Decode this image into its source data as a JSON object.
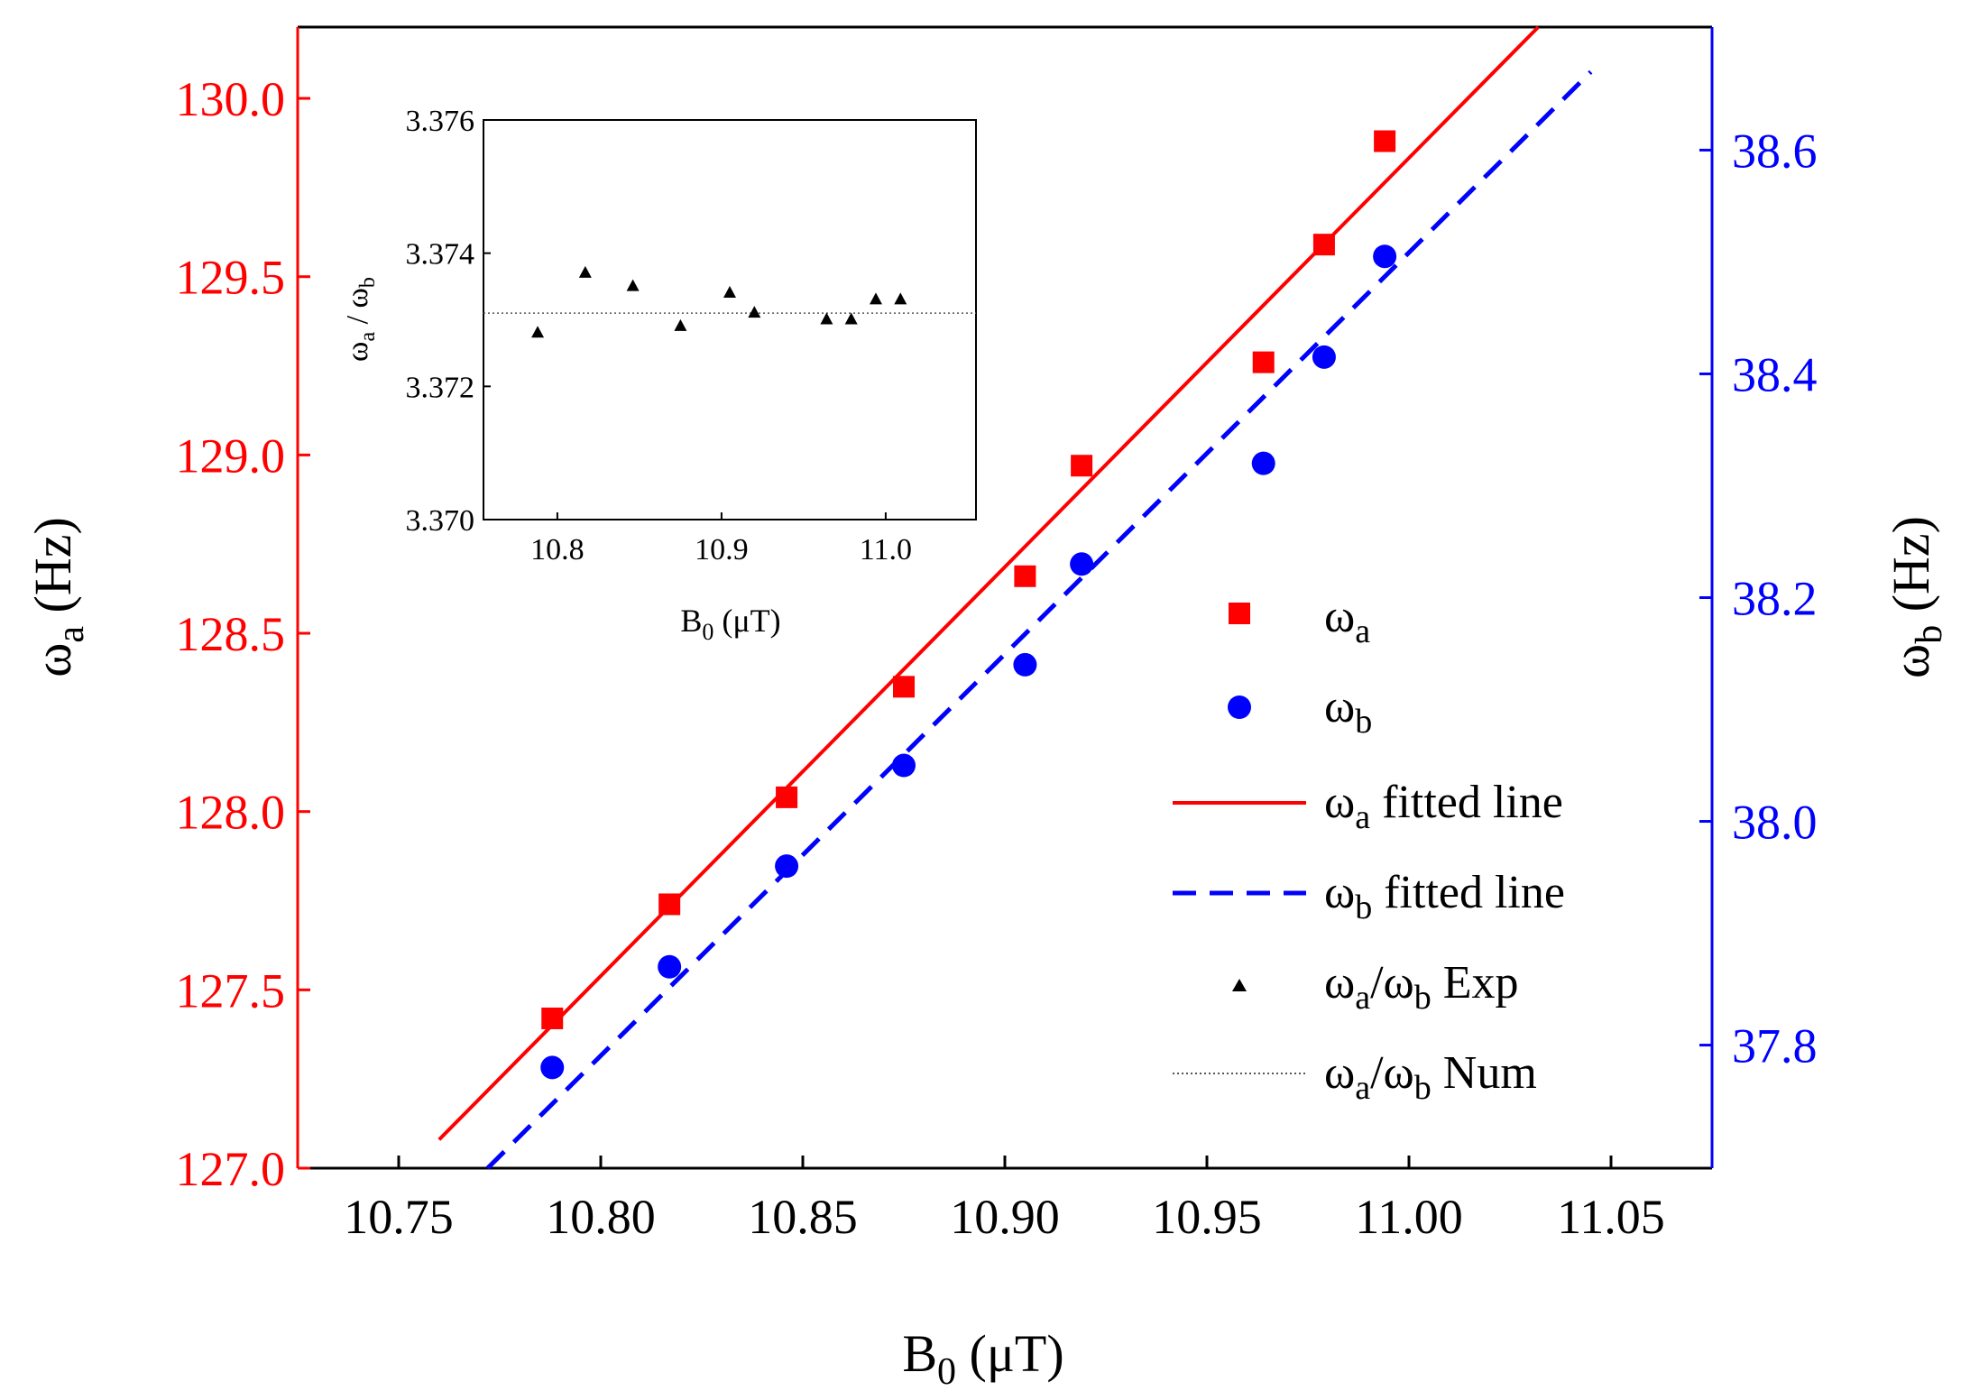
{
  "chart_data": [
    {
      "type": "scatter",
      "role": "main",
      "xlabel": {
        "main": "B",
        "sub": "0",
        "unit": " (μT)"
      },
      "ylabel_left": {
        "main": "ω",
        "sub": "a",
        "unit": " (Hz)"
      },
      "ylabel_right": {
        "main": "ω",
        "sub": "b",
        "unit": " (Hz)"
      },
      "xlim": [
        10.725,
        11.075
      ],
      "ylim_left": [
        127.0,
        130.2
      ],
      "ylim_right": [
        37.69,
        38.71
      ],
      "x_ticks": [
        "10.75",
        "10.80",
        "10.85",
        "10.90",
        "10.95",
        "11.00",
        "11.05"
      ],
      "x_tick_values": [
        10.75,
        10.8,
        10.85,
        10.9,
        10.95,
        11.0,
        11.05
      ],
      "y_left_ticks": [
        "127.0",
        "127.5",
        "128.0",
        "128.5",
        "129.0",
        "129.5",
        "130.0"
      ],
      "y_left_tick_values": [
        127.0,
        127.5,
        128.0,
        128.5,
        129.0,
        129.5,
        130.0
      ],
      "y_right_ticks": [
        "37.8",
        "38.0",
        "38.2",
        "38.4",
        "38.6"
      ],
      "y_right_tick_values": [
        37.8,
        38.0,
        38.2,
        38.4,
        38.6
      ],
      "colors": {
        "a": "#ff0000",
        "b": "#0000ff",
        "ratio": "#000000"
      },
      "series": [
        {
          "name": "ω_a",
          "axis": "left",
          "marker": "square",
          "x": [
            10.788,
            10.817,
            10.846,
            10.875,
            10.905,
            10.919,
            10.964,
            10.979,
            10.994
          ],
          "y": [
            127.42,
            127.74,
            128.04,
            128.35,
            128.66,
            128.97,
            129.26,
            129.59,
            129.88
          ]
        },
        {
          "name": "ω_b",
          "axis": "right",
          "marker": "circle",
          "x": [
            10.788,
            10.817,
            10.846,
            10.875,
            10.905,
            10.919,
            10.964,
            10.979,
            10.994
          ],
          "y": [
            37.78,
            37.87,
            37.96,
            38.05,
            38.14,
            38.23,
            38.32,
            38.415,
            38.505
          ]
        },
        {
          "name": "ω_a fitted line",
          "axis": "left",
          "style": "solid",
          "x": [
            10.76,
            11.032
          ],
          "y": [
            127.08,
            130.2
          ]
        },
        {
          "name": "ω_b fitted line",
          "axis": "right",
          "style": "dashed",
          "x": [
            10.772,
            11.045
          ],
          "y": [
            37.69,
            38.67
          ]
        }
      ],
      "legend": {
        "placement": "right",
        "entries": [
          {
            "symbol": "square",
            "label_main": "ω",
            "label_sub": "a",
            "label_rest": ""
          },
          {
            "symbol": "circle",
            "label_main": "ω",
            "label_sub": "b",
            "label_rest": ""
          },
          {
            "symbol": "solid-line",
            "label_main": "ω",
            "label_sub": "a",
            "label_rest": " fitted line"
          },
          {
            "symbol": "dashed-line",
            "label_main": "ω",
            "label_sub": "b",
            "label_rest": " fitted line"
          },
          {
            "symbol": "triangle",
            "label_main": "ω",
            "label_sub": "a",
            "label_mid": "/ω",
            "label_sub2": "b",
            "label_rest": " Exp"
          },
          {
            "symbol": "dotted-line",
            "label_main": "ω",
            "label_sub": "a",
            "label_mid": "/ω",
            "label_sub2": "b",
            "label_rest": " Num"
          }
        ]
      }
    },
    {
      "type": "scatter",
      "role": "inset",
      "xlabel": {
        "main": "B",
        "sub": "0",
        "unit": " (μT)"
      },
      "ylabel": {
        "main": "ω",
        "sub": "a",
        "mid": " / ω",
        "sub2": "b"
      },
      "xlim": [
        10.755,
        11.055
      ],
      "ylim": [
        3.37,
        3.376
      ],
      "x_ticks": [
        "10.8",
        "10.9",
        "11.0"
      ],
      "x_tick_values": [
        10.8,
        10.9,
        11.0
      ],
      "y_ticks": [
        "3.370",
        "3.372",
        "3.374",
        "3.376"
      ],
      "y_tick_values": [
        3.37,
        3.372,
        3.374,
        3.376
      ],
      "series": [
        {
          "name": "ω_a/ω_b Exp",
          "marker": "triangle",
          "x": [
            10.788,
            10.817,
            10.846,
            10.875,
            10.905,
            10.92,
            10.964,
            10.979,
            10.994,
            11.009
          ],
          "y": [
            3.3728,
            3.3737,
            3.3735,
            3.3729,
            3.3734,
            3.3731,
            3.373,
            3.373,
            3.3733,
            3.3733
          ]
        },
        {
          "name": "ω_a/ω_b Num",
          "style": "dotted",
          "x": [
            10.755,
            11.055
          ],
          "y": [
            3.3731,
            3.3731
          ]
        }
      ]
    }
  ]
}
